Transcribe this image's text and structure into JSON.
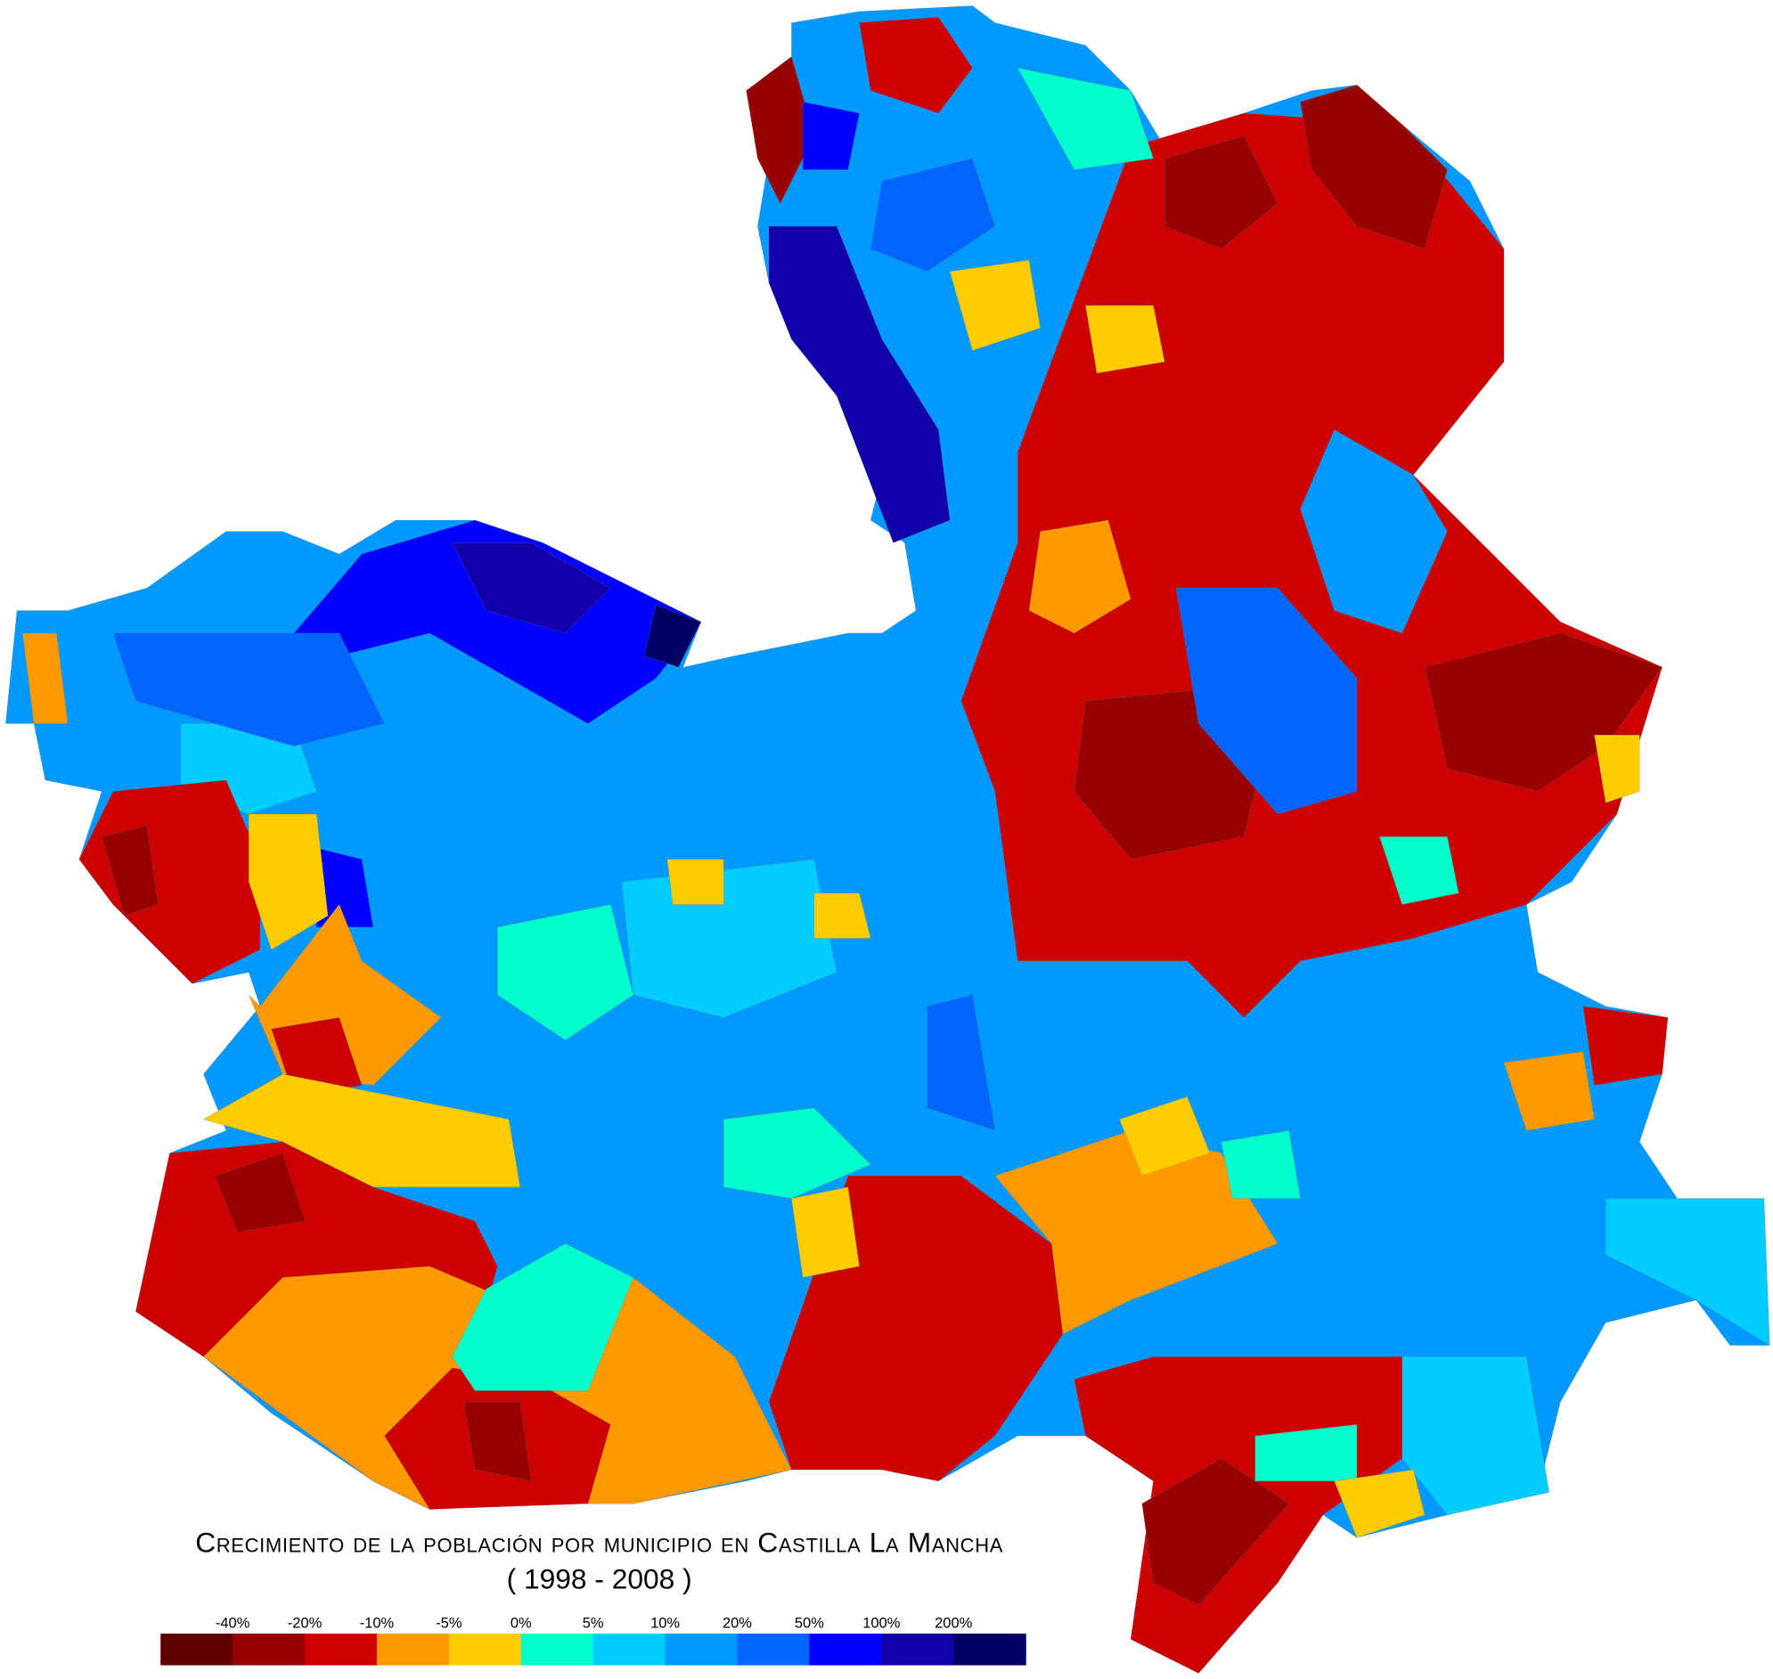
{
  "title": "Crecimiento de la población por municipio en Castilla La Mancha",
  "subtitle": "( 1998 - 2008 )",
  "legend": {
    "tick_labels": [
      "-40%",
      "-20%",
      "-10%",
      "-5%",
      "0%",
      "5%",
      "10%",
      "20%",
      "50%",
      "100%",
      "200%"
    ],
    "colors": [
      "#600000",
      "#990000",
      "#cc0000",
      "#ff9900",
      "#ffcc00",
      "#00ffcc",
      "#00ccff",
      "#0099ff",
      "#0066ff",
      "#0000ff",
      "#1100aa",
      "#000066"
    ]
  }
}
